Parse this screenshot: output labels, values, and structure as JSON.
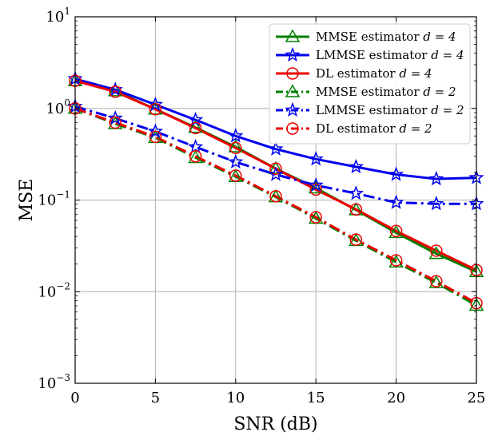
{
  "chart_data": {
    "type": "line",
    "title": "",
    "xlabel": "SNR (dB)",
    "ylabel": "MSE",
    "yscale": "log",
    "xlim": [
      0,
      25
    ],
    "ylim": [
      0.001,
      10
    ],
    "grid": true,
    "x": [
      0,
      2.5,
      5,
      7.5,
      10,
      12.5,
      15,
      17.5,
      20,
      22.5,
      25
    ],
    "x_ticks": [
      0,
      5,
      10,
      15,
      20,
      25
    ],
    "x_tick_labels": [
      "0",
      "5",
      "10",
      "15",
      "20",
      "25"
    ],
    "y_ticks": [
      0.001,
      0.01,
      0.1,
      1,
      10
    ],
    "y_tick_mantissa": [
      "10",
      "10",
      "10",
      "10",
      "10"
    ],
    "y_tick_exponents": [
      "−3",
      "−2",
      "−1",
      "0",
      "1"
    ],
    "legend_position": "top-right",
    "series": [
      {
        "name": "MMSE estimator",
        "d_label": "d = 4",
        "color": "#008000",
        "linestyle": "solid",
        "marker": "triangle",
        "values": [
          2.0,
          1.55,
          0.98,
          0.62,
          0.38,
          0.22,
          0.135,
          0.078,
          0.044,
          0.026,
          0.0165
        ]
      },
      {
        "name": "LMMSE estimator",
        "d_label": "d = 4",
        "color": "#0000ee",
        "linestyle": "solid",
        "marker": "star",
        "values": [
          2.1,
          1.6,
          1.1,
          0.75,
          0.5,
          0.36,
          0.28,
          0.23,
          0.19,
          0.17,
          0.175
        ]
      },
      {
        "name": "DL estimator",
        "d_label": "d = 4",
        "color": "#ee0000",
        "linestyle": "solid",
        "marker": "circle",
        "values": [
          2.0,
          1.52,
          0.98,
          0.61,
          0.37,
          0.22,
          0.13,
          0.079,
          0.046,
          0.028,
          0.0172
        ]
      },
      {
        "name": "MMSE estimator",
        "d_label": "d = 2",
        "color": "#008000",
        "linestyle": "dashdot",
        "marker": "triangle",
        "values": [
          1.0,
          0.68,
          0.48,
          0.29,
          0.18,
          0.108,
          0.063,
          0.036,
          0.021,
          0.0125,
          0.0071
        ]
      },
      {
        "name": "LMMSE estimator",
        "d_label": "d = 2",
        "color": "#0000ee",
        "linestyle": "dashdot",
        "marker": "star",
        "values": [
          1.05,
          0.78,
          0.56,
          0.38,
          0.26,
          0.19,
          0.145,
          0.118,
          0.094,
          0.091,
          0.091
        ]
      },
      {
        "name": "DL estimator",
        "d_label": "d = 2",
        "color": "#ee0000",
        "linestyle": "dashdot",
        "marker": "circle",
        "values": [
          1.0,
          0.7,
          0.49,
          0.3,
          0.185,
          0.11,
          0.065,
          0.037,
          0.022,
          0.013,
          0.0075
        ]
      }
    ]
  }
}
